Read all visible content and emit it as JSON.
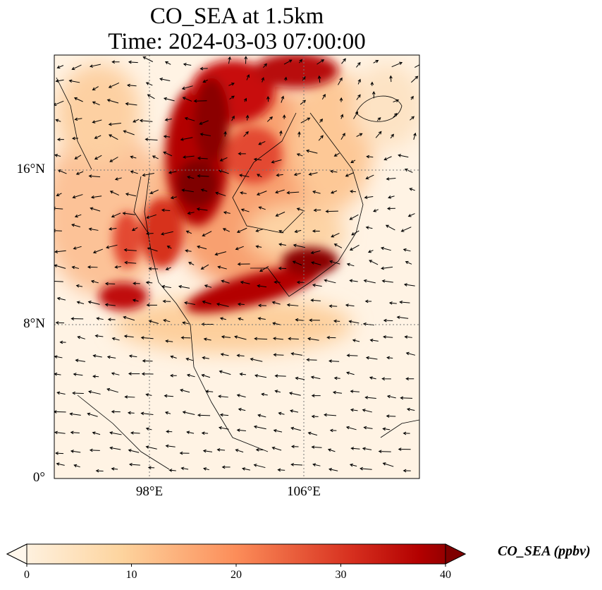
{
  "title_line1": "CO_SEA at 1.5km",
  "title_line2": "Time: 2024-03-03 07:00:00",
  "chart_data": {
    "type": "heatmap",
    "title": "CO_SEA at 1.5km\nTime: 2024-03-03 07:00:00",
    "variable": "CO_SEA",
    "level": "1.5km",
    "x_range_deg_E": [
      93,
      112
    ],
    "y_range_deg_N": [
      0,
      22
    ],
    "x_ticks": [
      {
        "value": 98,
        "label": "98°E"
      },
      {
        "value": 106,
        "label": "106°E"
      }
    ],
    "y_ticks": [
      {
        "value": 16,
        "label": "16°N"
      },
      {
        "value": 8,
        "label": "8°N"
      },
      {
        "value": 0,
        "label": "0°"
      }
    ],
    "grid": "dotted",
    "colormap": "OrRd",
    "colorbar": {
      "label": "CO_SEA (ppbv)",
      "range": [
        0,
        40
      ],
      "ticks": [
        "0",
        "10",
        "20",
        "30",
        "40"
      ],
      "extend": "both",
      "placement": "bottom",
      "colors": [
        "#fff7ec",
        "#fdd49e",
        "#fc8d59",
        "#d7301f",
        "#7f0000"
      ]
    },
    "overlay": "wind vectors (quiver)"
  }
}
